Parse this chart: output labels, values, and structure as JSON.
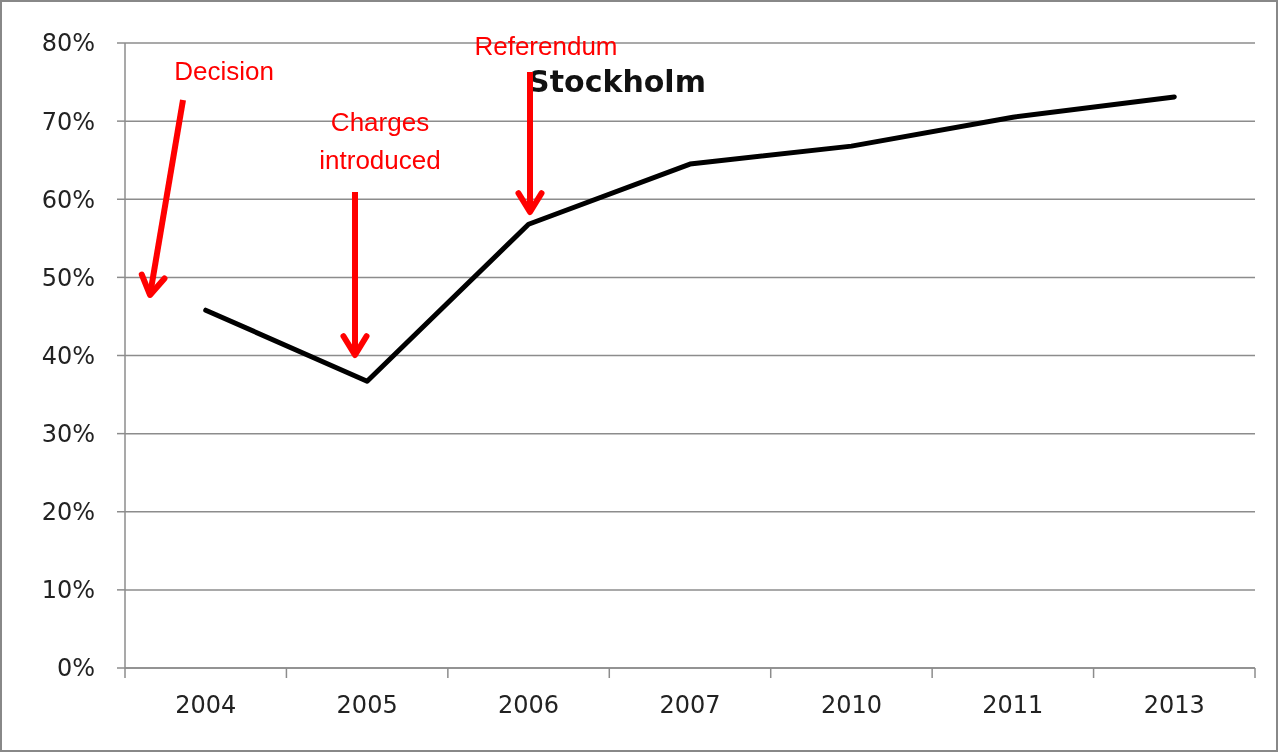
{
  "chart_data": {
    "type": "line",
    "title": "Stockholm",
    "categories": [
      "2004",
      "2005",
      "2006",
      "2007",
      "2010",
      "2011",
      "2013"
    ],
    "series": [
      {
        "color": "#000000",
        "values": [
          45.8,
          36.7,
          56.8,
          64.5,
          66.8,
          70.5,
          73.1
        ]
      }
    ],
    "ylim": [
      0,
      80
    ],
    "yticks": [
      {
        "value": 0,
        "label": "0%"
      },
      {
        "value": 10,
        "label": "10%"
      },
      {
        "value": 20,
        "label": "20%"
      },
      {
        "value": 30,
        "label": "30%"
      },
      {
        "value": 40,
        "label": "40%"
      },
      {
        "value": 50,
        "label": "50%"
      },
      {
        "value": 60,
        "label": "60%"
      },
      {
        "value": 70,
        "label": "70%"
      },
      {
        "value": 80,
        "label": "80%"
      }
    ],
    "grid": "y",
    "marker": "none",
    "line_style": "solid",
    "annotations": [
      "Decision",
      "Charges\nintroduced",
      "Referendum"
    ]
  }
}
